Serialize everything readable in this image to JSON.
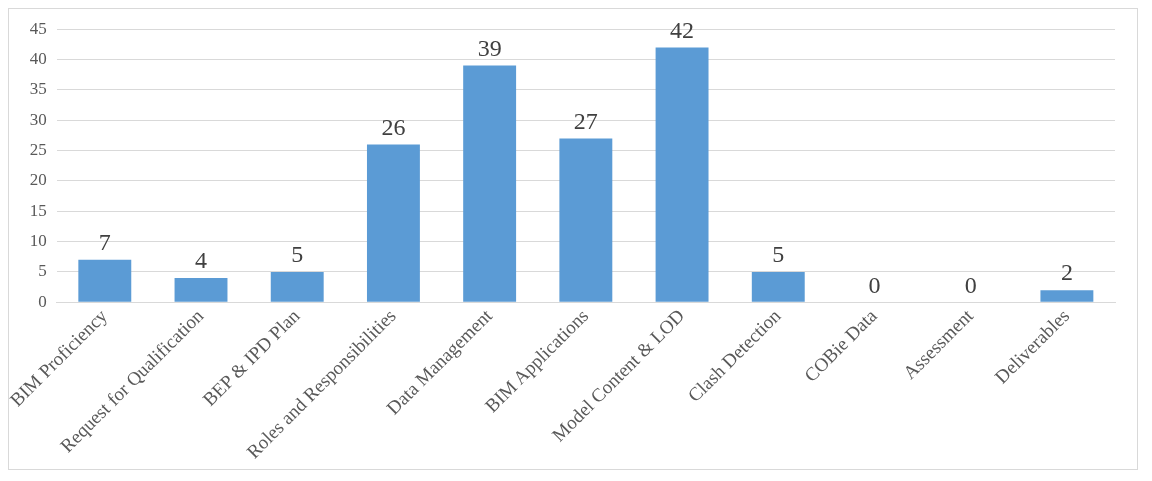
{
  "chart_data": {
    "type": "bar",
    "categories": [
      "BIM Proficiency",
      "Request for Qualification",
      "BEP & IPD Plan",
      "Roles and Responsibilities",
      "Data Management",
      "BIM Applications",
      "Model Content & LOD",
      "Clash Detection",
      "COBie Data",
      "Assessment",
      "Deliverables"
    ],
    "values": [
      7,
      4,
      5,
      26,
      39,
      27,
      42,
      5,
      0,
      0,
      2
    ],
    "color": "#5b9bd5",
    "ylim": [
      0,
      45
    ],
    "yticks": [
      0,
      5,
      10,
      15,
      20,
      25,
      30,
      35,
      40,
      45
    ],
    "grid": "y",
    "data_labels": true,
    "legend": false
  }
}
